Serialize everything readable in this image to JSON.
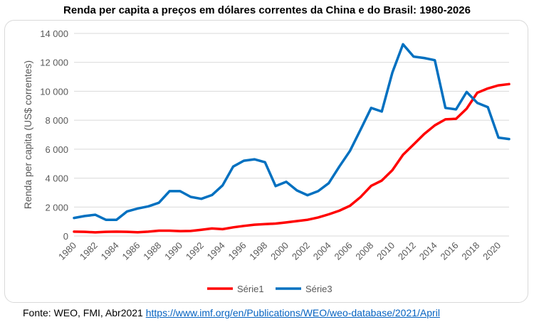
{
  "chart_data": {
    "type": "line",
    "title": "Renda per capita a preços em dólares correntes da China e do Brasil: 1980-2026",
    "ylabel": "Renda per capita (US$ correntes)",
    "xlabel": "",
    "ylim": [
      0,
      14000
    ],
    "y_ticks": [
      0,
      2000,
      4000,
      6000,
      8000,
      10000,
      12000,
      14000
    ],
    "y_tick_labels": [
      "0",
      "2 000",
      "4 000",
      "6 000",
      "8 000",
      "10 000",
      "12 000",
      "14 000"
    ],
    "x_tick_labels": [
      "1980",
      "1982",
      "1984",
      "1986",
      "1988",
      "1990",
      "1992",
      "1994",
      "1996",
      "1998",
      "2000",
      "2002",
      "2004",
      "2006",
      "2008",
      "2010",
      "2012",
      "2014",
      "2016",
      "2018",
      "2020"
    ],
    "x": [
      1980,
      1981,
      1982,
      1983,
      1984,
      1985,
      1986,
      1987,
      1988,
      1989,
      1990,
      1991,
      1992,
      1993,
      1994,
      1995,
      1996,
      1997,
      1998,
      1999,
      2000,
      2001,
      2002,
      2003,
      2004,
      2005,
      2006,
      2007,
      2008,
      2009,
      2010,
      2011,
      2012,
      2013,
      2014,
      2015,
      2016,
      2017,
      2018,
      2019,
      2020,
      2021
    ],
    "grid": true,
    "legend_position": "bottom",
    "series": [
      {
        "name": "Série1",
        "color": "#ff0000",
        "values": [
          300,
          290,
          250,
          290,
          300,
          290,
          260,
          300,
          370,
          370,
          340,
          350,
          430,
          520,
          470,
          600,
          700,
          780,
          820,
          860,
          940,
          1030,
          1120,
          1280,
          1500,
          1750,
          2090,
          2690,
          3470,
          3830,
          4550,
          5610,
          6320,
          7050,
          7650,
          8060,
          8100,
          8800,
          9900,
          10200,
          10410,
          10500
        ]
      },
      {
        "name": "Série3",
        "color": "#0070c0",
        "values": [
          1250,
          1380,
          1470,
          1120,
          1120,
          1700,
          1900,
          2050,
          2300,
          3100,
          3100,
          2700,
          2570,
          2830,
          3500,
          4800,
          5200,
          5300,
          5100,
          3450,
          3750,
          3150,
          2820,
          3100,
          3650,
          4800,
          5880,
          7350,
          8850,
          8600,
          11300,
          13250,
          12400,
          12300,
          12150,
          8850,
          8750,
          9950,
          9200,
          8900,
          6800,
          6700
        ]
      }
    ]
  },
  "source": {
    "prefix": "Fonte: WEO, FMI, Abr2021 ",
    "link_text": "https://www.imf.org/en/Publications/WEO/weo-database/2021/April"
  }
}
